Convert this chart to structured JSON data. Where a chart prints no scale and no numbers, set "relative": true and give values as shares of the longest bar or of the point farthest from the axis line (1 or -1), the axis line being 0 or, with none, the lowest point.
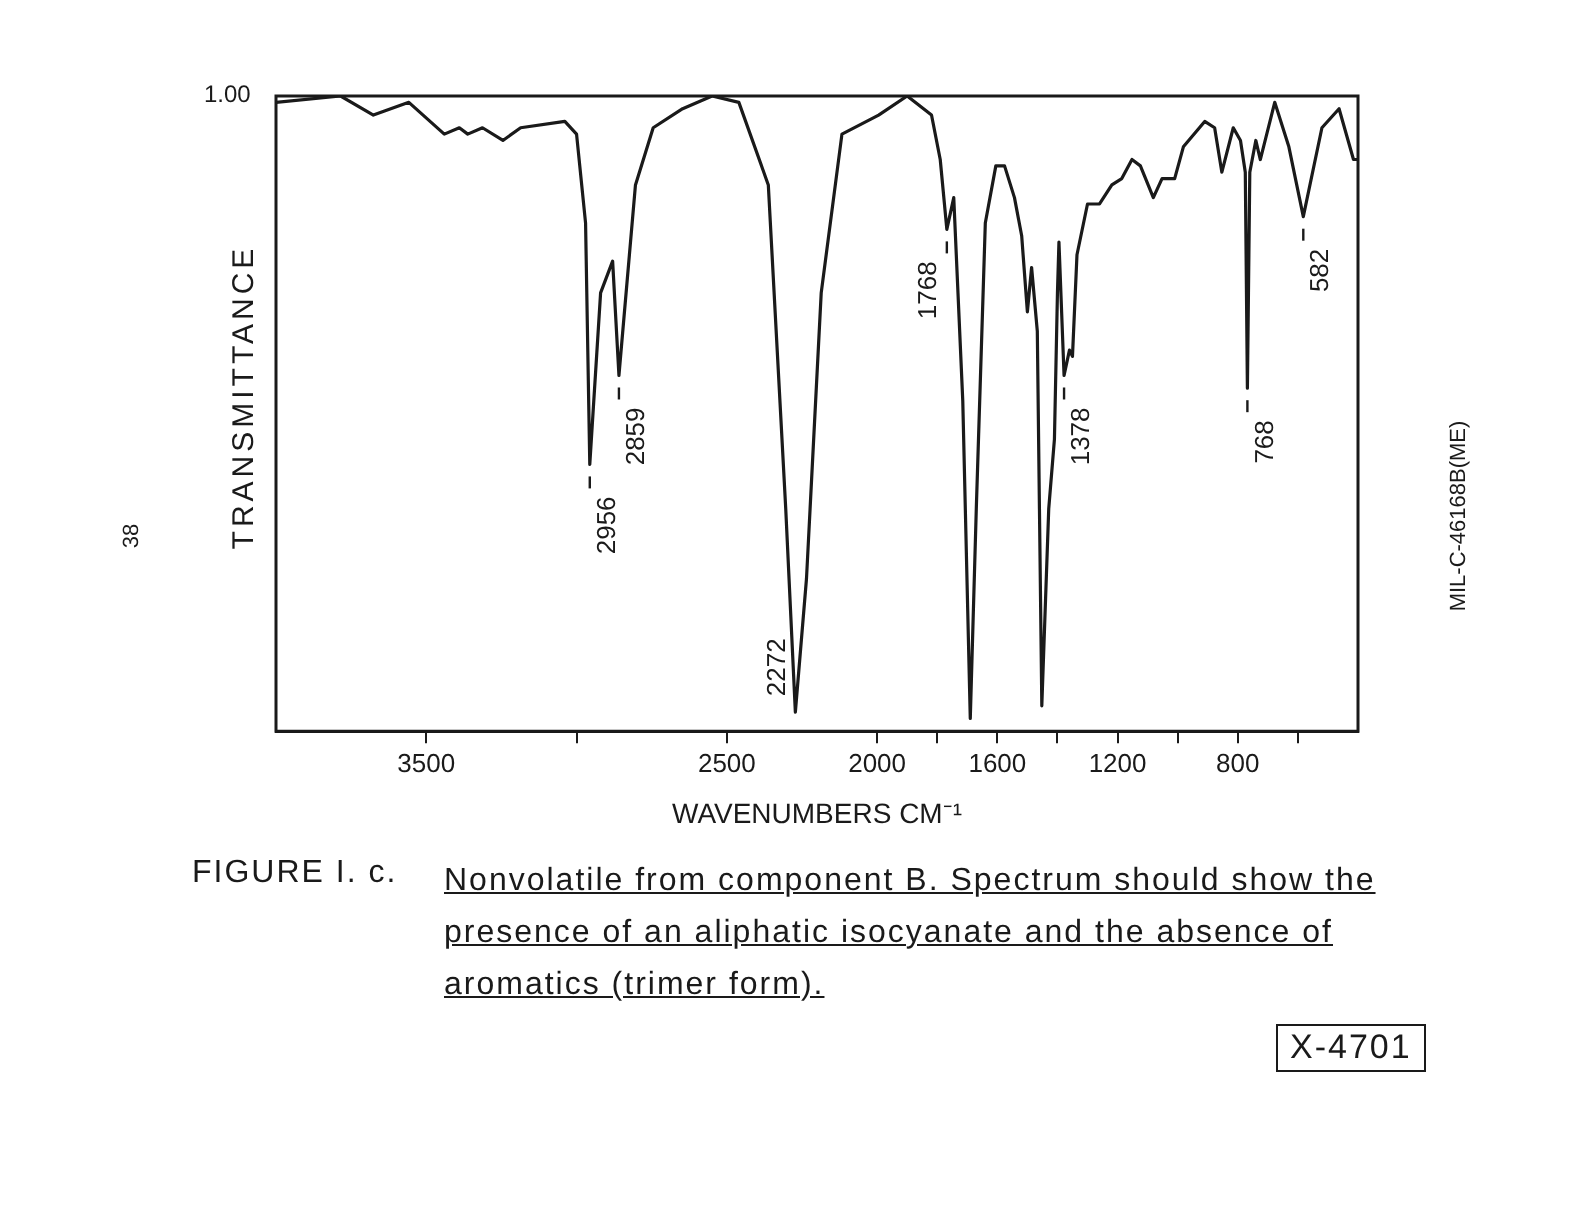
{
  "chart_data": {
    "type": "line",
    "relative": true,
    "xlabel": "WAVENUMBERS CM⁻¹",
    "ylabel": "TRANSMITTANCE",
    "xlim": [
      4000,
      400
    ],
    "xticks": [
      3500,
      {
        "value": 3000,
        "label": null
      },
      2500,
      2000,
      {
        "value": 1800,
        "label": null
      },
      1600,
      {
        "value": 1400,
        "label": null
      },
      1200,
      {
        "value": 1000,
        "label": null
      },
      800,
      {
        "value": 600,
        "label": null
      }
    ],
    "grid": false,
    "legend": false,
    "marker": "none",
    "line_style": "solid",
    "x": [
      4000,
      3785,
      3676,
      3558,
      3440,
      3390,
      3362,
      3313,
      3245,
      3186,
      3039,
      3000,
      2970,
      2956,
      2920,
      2880,
      2859,
      2804,
      2745,
      2647,
      2549,
      2460,
      2362,
      2304,
      2272,
      2235,
      2186,
      2117,
      1995,
      1900,
      1819,
      1790,
      1768,
      1745,
      1715,
      1690,
      1670,
      1640,
      1605,
      1576,
      1543,
      1519,
      1500,
      1486,
      1467,
      1452,
      1429,
      1410,
      1400,
      1395,
      1378,
      1360,
      1350,
      1335,
      1300,
      1260,
      1219,
      1186,
      1152,
      1124,
      1081,
      1052,
      1010,
      981,
      910,
      877,
      853,
      815,
      791,
      775,
      768,
      760,
      740,
      725,
      677,
      630,
      582,
      520,
      463,
      415,
      400
    ],
    "series": [
      {
        "color": "#1a1a1a",
        "values": [
          0.99,
          1.0,
          0.97,
          0.99,
          0.94,
          0.95,
          0.94,
          0.95,
          0.93,
          0.95,
          0.96,
          0.94,
          0.8,
          0.42,
          0.69,
          0.74,
          0.56,
          0.86,
          0.95,
          0.98,
          1.0,
          0.99,
          0.86,
          0.35,
          0.03,
          0.24,
          0.69,
          0.94,
          0.97,
          1.0,
          0.97,
          0.9,
          0.79,
          0.84,
          0.52,
          0.02,
          0.35,
          0.8,
          0.89,
          0.89,
          0.84,
          0.78,
          0.66,
          0.73,
          0.63,
          0.04,
          0.35,
          0.46,
          0.69,
          0.77,
          0.56,
          0.6,
          0.59,
          0.75,
          0.83,
          0.83,
          0.86,
          0.87,
          0.9,
          0.89,
          0.84,
          0.87,
          0.87,
          0.92,
          0.96,
          0.95,
          0.88,
          0.95,
          0.93,
          0.88,
          0.54,
          0.88,
          0.93,
          0.9,
          0.99,
          0.92,
          0.81,
          0.95,
          0.98,
          0.9,
          0.9
        ]
      }
    ],
    "annotations": [
      "1.00",
      {
        "text": "2956",
        "x": 2956,
        "y": 0.42
      },
      {
        "text": "2859",
        "x": 2859,
        "y": 0.56
      },
      {
        "text": "2272",
        "x": 2272,
        "y": 0.03
      },
      {
        "text": "1768",
        "x": 1768,
        "y": 0.79
      },
      {
        "text": "1378",
        "x": 1378,
        "y": 0.56
      },
      {
        "text": "768",
        "x": 768,
        "y": 0.54
      },
      {
        "text": "582",
        "x": 582,
        "y": 0.81
      },
      "FIGURE I. c.",
      "Nonvolatile from component B. Spectrum should show the presence of an aliphatic isocyanate and the absence of aromatics (trimer form).",
      "X-4701",
      "38",
      "MIL-C-46168B(ME)"
    ]
  }
}
